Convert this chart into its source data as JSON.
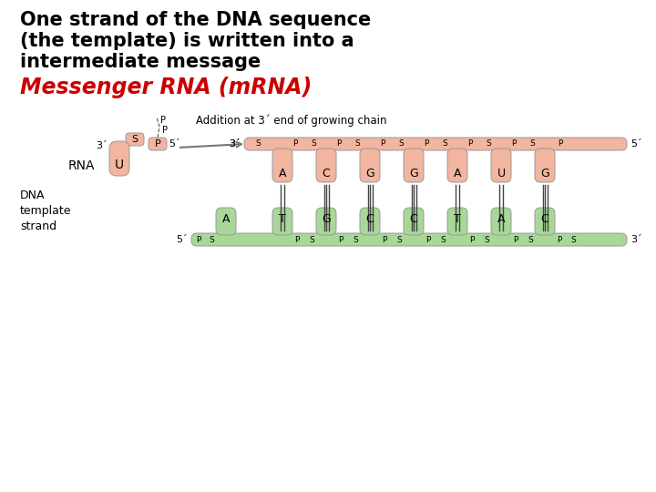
{
  "title_line1": "One strand of the DNA sequence",
  "title_line2": "(the template) is written into a",
  "title_line3": "intermediate message",
  "subtitle": "Messenger RNA (mRNA)",
  "subtitle_color": "#cc0000",
  "bg_color": "#ffffff",
  "rna_color": "#f2b5a0",
  "dna_color": "#a8d898",
  "rna_bases": [
    "A",
    "C",
    "G",
    "G",
    "A",
    "U",
    "G"
  ],
  "dna_bases": [
    "T",
    "G",
    "C",
    "C",
    "T",
    "A",
    "C"
  ],
  "dna_first": "A",
  "rna_label": "RNA",
  "dna_label": "DNA\ntemplate\nstrand",
  "annotation": "Addition at 3´ end of growing chain",
  "five_prime": "5´",
  "three_prime": "3´",
  "title_fontsize": 15,
  "subtitle_fontsize": 17
}
